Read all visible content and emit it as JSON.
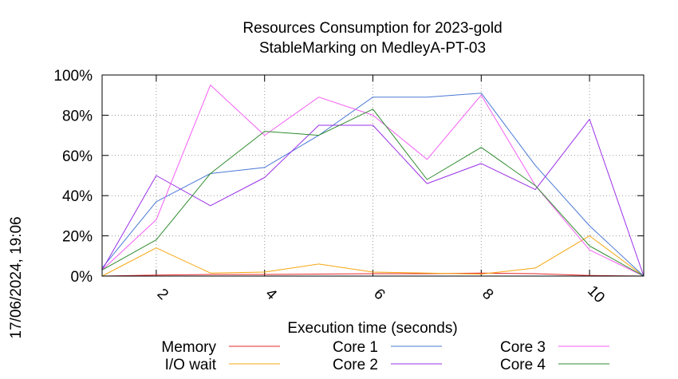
{
  "chart_data": {
    "type": "line",
    "title": "Resources Consumption for 2023-gold",
    "subtitle": "StableMarking on MedleyA-PT-03",
    "xlabel": "Execution time (seconds)",
    "ylabel": "",
    "side_label": "17/06/2024, 19:06",
    "xlim": [
      1,
      11
    ],
    "ylim": [
      0,
      100
    ],
    "x_ticks": [
      2,
      4,
      6,
      8,
      10
    ],
    "y_ticks": [
      0,
      20,
      40,
      60,
      80,
      100
    ],
    "y_tick_labels": [
      "0%",
      "20%",
      "40%",
      "60%",
      "80%",
      "100%"
    ],
    "grid": true,
    "legend_position": "bottom",
    "x": [
      1,
      2,
      3,
      4,
      5,
      6,
      7,
      8,
      9,
      10,
      11
    ],
    "series": [
      {
        "name": "Memory",
        "color": "#e8272b",
        "values": [
          0,
          0.5,
          0.8,
          0.8,
          1,
          1.2,
          1.2,
          1.5,
          1.2,
          0.3,
          0
        ]
      },
      {
        "name": "I/O wait",
        "color": "#f5a70f",
        "values": [
          0,
          14,
          1.5,
          2,
          6,
          2,
          1.5,
          1,
          4,
          20,
          0
        ]
      },
      {
        "name": "Core 1",
        "color": "#4a78d4",
        "values": [
          4,
          37,
          51,
          54,
          70,
          89,
          89,
          91,
          55,
          25,
          0
        ]
      },
      {
        "name": "Core 2",
        "color": "#9b30e8",
        "values": [
          3,
          50,
          35,
          49,
          75,
          75,
          46,
          56,
          43,
          78,
          0
        ]
      },
      {
        "name": "Core 3",
        "color": "#f55ef5",
        "values": [
          3,
          28,
          95,
          70,
          89,
          80,
          58,
          90,
          45,
          13,
          0
        ]
      },
      {
        "name": "Core 4",
        "color": "#2e8b2e",
        "values": [
          3,
          18,
          51,
          72,
          70,
          83,
          48,
          64,
          45,
          15,
          0
        ]
      }
    ]
  }
}
